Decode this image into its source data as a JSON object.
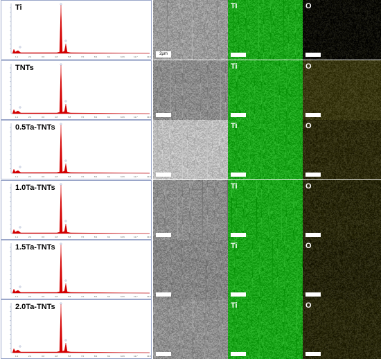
{
  "scale_bar_text": "2μm",
  "rows": [
    {
      "sample": "Ti",
      "element_ti": "Ti",
      "element_o": "O",
      "o_color": "#0c0c04",
      "sem_tone": "#9a9a9a"
    },
    {
      "sample": "TNTs",
      "element_ti": "Ti",
      "element_o": "O",
      "o_color": "#3a3812",
      "sem_tone": "#8a8a8a"
    },
    {
      "sample": "0.5Ta-TNTs",
      "element_ti": "Ti",
      "element_o": "O",
      "o_color": "#2e2c0d",
      "sem_tone": "#bdbdbd"
    },
    {
      "sample": "1.0Ta-TNTs",
      "element_ti": "Ti",
      "element_o": "O",
      "o_color": "#2a290c",
      "sem_tone": "#8c8c8c"
    },
    {
      "sample": "1.5Ta-TNTs",
      "element_ti": "Ti",
      "element_o": "O",
      "o_color": "#26250b",
      "sem_tone": "#858585"
    },
    {
      "sample": "2.0Ta-TNTs",
      "element_ti": "Ti",
      "element_o": "O",
      "o_color": "#2a290c",
      "sem_tone": "#8f8f8f"
    }
  ],
  "ti_color": "#1aa51a",
  "spectrum_color": "#d40000",
  "x_ticks": [
    "1.1",
    "2.4",
    "3.6",
    "4.8",
    "5.8",
    "7.0",
    "8.2",
    "9.4",
    "10.6",
    "11.7",
    "13.0"
  ]
}
